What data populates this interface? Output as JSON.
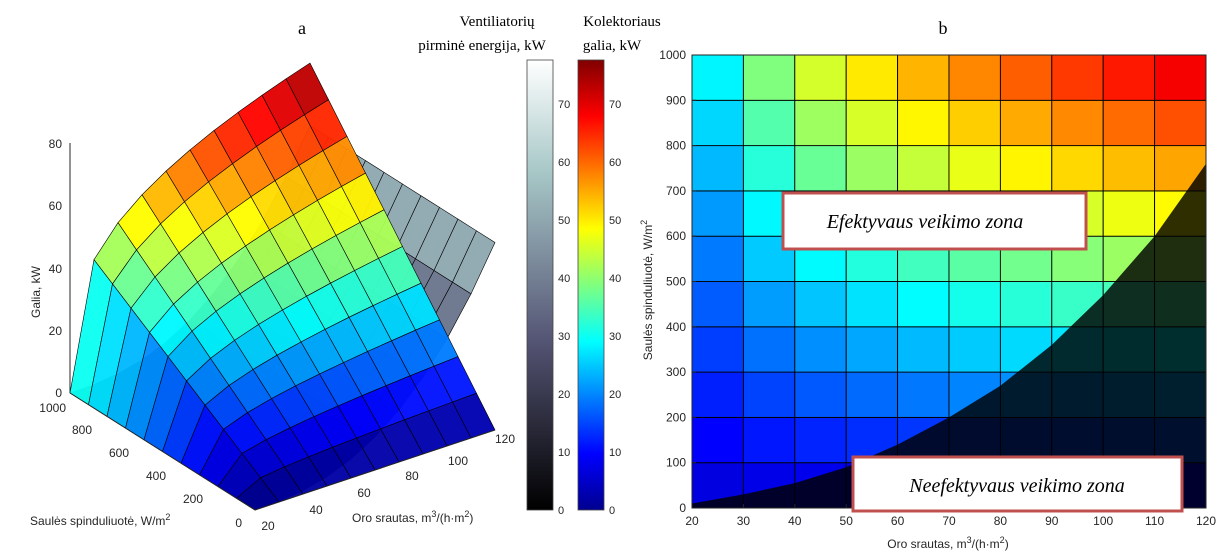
{
  "panel_labels": {
    "a": "a",
    "b": "b"
  },
  "colorbars": {
    "fan_title_line1": "Ventiliatorių",
    "fan_title_line2": "pirminė energija, kW",
    "collector_title_line1": "Kolektoriaus",
    "collector_title_line2": "galia, kW",
    "ticks": [
      "0",
      "10",
      "20",
      "30",
      "40",
      "50",
      "60",
      "70"
    ]
  },
  "zones": {
    "effective": "Efektyvaus veikimo zona",
    "ineffective": "Neefektyvaus veikimo zona"
  },
  "chart_data": [
    {
      "id": "a",
      "type": "surface",
      "zlabel": "Galia, kW",
      "xlabel": "Oro srautas, m³/(h·m²)",
      "ylabel": "Saulės spinduliuotė, W/m²",
      "xlim": [
        20,
        120
      ],
      "ylim": [
        0,
        1000
      ],
      "zlim": [
        0,
        80
      ],
      "x_ticks": [
        "20",
        "40",
        "60",
        "80",
        "100",
        "120"
      ],
      "y_ticks": [
        "0",
        "200",
        "400",
        "600",
        "800",
        "1000"
      ],
      "z_ticks": [
        "0",
        "20",
        "40",
        "60",
        "80"
      ],
      "x_values": [
        20,
        30,
        40,
        50,
        60,
        70,
        80,
        90,
        100,
        110,
        120
      ],
      "y_values": [
        0,
        100,
        200,
        300,
        400,
        500,
        600,
        700,
        800,
        900,
        1000
      ],
      "collector_power_max": 80,
      "fan_energy_max": 60,
      "colormap_collector": "jet",
      "colormap_fan": "bone"
    },
    {
      "id": "b",
      "type": "heatmap",
      "xlabel": "Oro srautas, m³/(h·m²)",
      "ylabel": "Saulės spinduliuotė, W/m²",
      "xlim": [
        20,
        120
      ],
      "ylim": [
        0,
        1000
      ],
      "x_ticks": [
        "20",
        "30",
        "40",
        "50",
        "60",
        "70",
        "80",
        "90",
        "100",
        "110",
        "120"
      ],
      "y_ticks": [
        "0",
        "100",
        "200",
        "300",
        "400",
        "500",
        "600",
        "700",
        "800",
        "900",
        "1000"
      ],
      "x_values": [
        20,
        30,
        40,
        50,
        60,
        70,
        80,
        90,
        100,
        110,
        120
      ],
      "y_values": [
        0,
        100,
        200,
        300,
        400,
        500,
        600,
        700,
        800,
        900,
        1000
      ],
      "boundary_curve": [
        [
          20,
          10
        ],
        [
          30,
          30
        ],
        [
          40,
          55
        ],
        [
          50,
          90
        ],
        [
          60,
          140
        ],
        [
          70,
          200
        ],
        [
          80,
          270
        ],
        [
          90,
          360
        ],
        [
          100,
          470
        ],
        [
          110,
          600
        ],
        [
          120,
          760
        ]
      ]
    }
  ]
}
